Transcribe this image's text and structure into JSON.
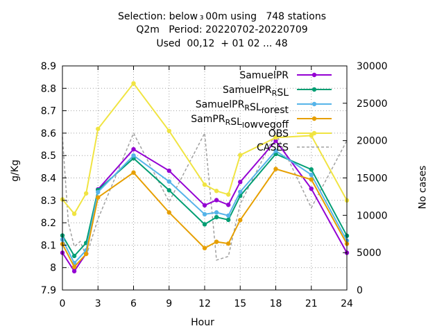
{
  "chart_data": {
    "type": "line",
    "title_lines": [
      "Selection: below ₃ 00m using   748 stations",
      "Q2m   Period: 20220702-20220709",
      "Used  00,12  + 01 02 ... 48"
    ],
    "xlabel": "Hour",
    "ylabel": "g/Kg",
    "y2label": "No cases",
    "xlim": [
      0,
      24
    ],
    "ylim": [
      7.9,
      8.9
    ],
    "y2lim": [
      0,
      30000
    ],
    "xticks": [
      "0",
      "3",
      "6",
      "9",
      "12",
      "15",
      "18",
      "21",
      "24"
    ],
    "yticks": [
      "7.9",
      "8",
      "8.1",
      "8.2",
      "8.3",
      "8.4",
      "8.5",
      "8.6",
      "8.7",
      "8.8",
      "8.9"
    ],
    "y2ticks": [
      "0",
      "5000",
      "10000",
      "15000",
      "20000",
      "25000",
      "30000"
    ],
    "grid": true,
    "legend_position": "top-right",
    "x": [
      0,
      1,
      2,
      3,
      6,
      9,
      12,
      13,
      14,
      15,
      18,
      21,
      24
    ],
    "series": [
      {
        "name": "SamuelPR",
        "color": "#9400d3",
        "values": [
          8.066,
          7.984,
          8.062,
          8.349,
          8.528,
          8.432,
          8.278,
          8.301,
          8.28,
          8.382,
          8.566,
          8.352,
          8.066
        ]
      },
      {
        "name": "SamuelPR_RSL",
        "color": "#009e73",
        "values": [
          8.143,
          8.052,
          8.11,
          8.346,
          8.488,
          8.345,
          8.193,
          8.225,
          8.213,
          8.32,
          8.507,
          8.438,
          8.142
        ]
      },
      {
        "name": "SamuelPR_RSL_forest",
        "color": "#56b4e9",
        "values": [
          8.125,
          8.02,
          8.077,
          8.337,
          8.5,
          8.384,
          8.238,
          8.246,
          8.232,
          8.338,
          8.521,
          8.414,
          8.12
        ]
      },
      {
        "name": "SamPR_RSL_lowvegoff",
        "color": "#e69f00",
        "values": [
          8.105,
          8.003,
          8.061,
          8.313,
          8.424,
          8.246,
          8.087,
          8.115,
          8.107,
          8.212,
          8.44,
          8.393,
          8.106
        ]
      },
      {
        "name": "OBS",
        "color": "#f0e442",
        "values": [
          8.304,
          8.24,
          8.331,
          8.619,
          8.822,
          8.61,
          8.37,
          8.342,
          8.326,
          8.502,
          8.58,
          8.589,
          8.3
        ]
      }
    ],
    "cases": {
      "name": "CASES",
      "color": "#a0a0a0",
      "axis": "y2",
      "x": [
        0,
        0.5,
        1,
        1.5,
        2,
        3,
        6,
        9,
        12,
        13,
        14,
        15,
        18,
        21,
        24
      ],
      "values": [
        20500,
        9000,
        5800,
        6500,
        4500,
        9500,
        21000,
        11800,
        21000,
        4000,
        4500,
        11500,
        21000,
        11000,
        20000
      ]
    },
    "legend_labels": [
      {
        "base": "SamuelPR",
        "sub": "",
        "rest": ""
      },
      {
        "base": "SamuelPR",
        "sub": "R",
        "rest": "SL"
      },
      {
        "base": "SamuelPR",
        "sub": "R",
        "rest": "SL",
        "sub2": "f",
        "rest2": "orest"
      },
      {
        "base": "SamPR",
        "sub": "R",
        "rest": "SL",
        "sub2": "l",
        "rest2": "owvegoff"
      },
      {
        "base": "OBS",
        "sub": "",
        "rest": ""
      },
      {
        "base": "CASES",
        "sub": "",
        "rest": ""
      }
    ]
  }
}
